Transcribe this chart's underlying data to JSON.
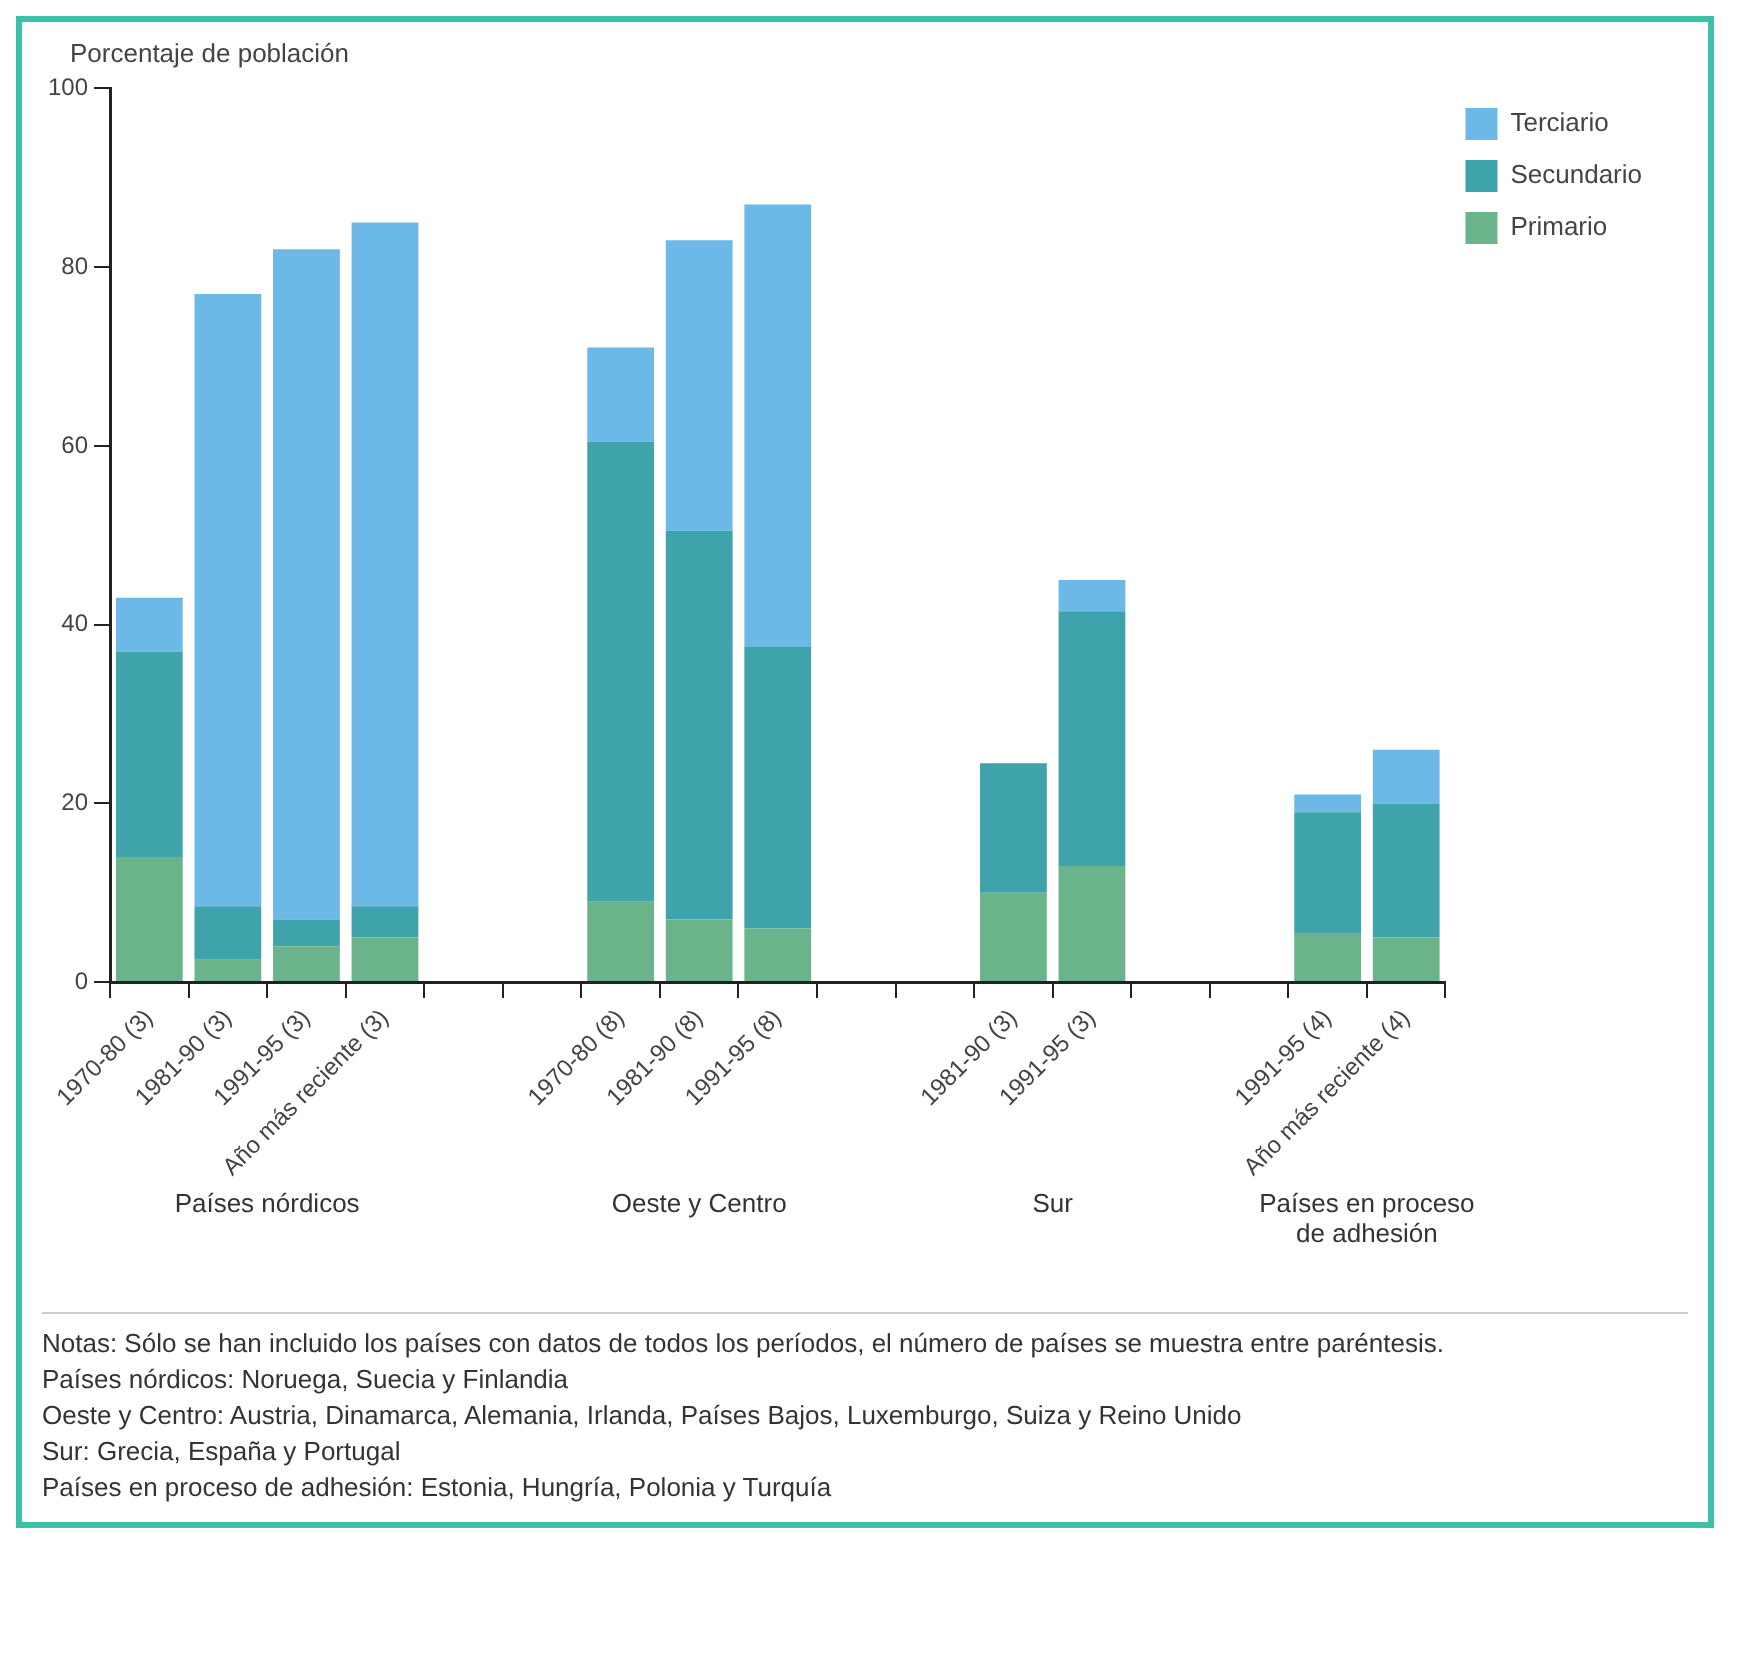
{
  "chart_data": {
    "type": "bar",
    "stacked": true,
    "ylabel": "Porcentaje de población",
    "categories": [
      "1970-80 (3)",
      "1981-90 (3)",
      "1991-95 (3)",
      "Año más reciente (3)",
      null,
      null,
      "1970-80 (8)",
      "1981-90 (8)",
      "1991-95 (8)",
      null,
      null,
      "1981-90 (3)",
      "1991-95 (3)",
      null,
      null,
      "1991-95 (4)",
      "Año más reciente (4)"
    ],
    "series": [
      {
        "name": "Primario",
        "color": "#6bb38a",
        "values": [
          14,
          2.5,
          4,
          5,
          null,
          null,
          9,
          7,
          6,
          null,
          null,
          10,
          13,
          null,
          null,
          5.5,
          5
        ]
      },
      {
        "name": "Secundario",
        "color": "#3ea3aa",
        "values": [
          23,
          6,
          3,
          3.5,
          null,
          null,
          51.5,
          43.5,
          31.5,
          null,
          null,
          14.5,
          28.5,
          null,
          null,
          13.5,
          15
        ]
      },
      {
        "name": "Terciario",
        "color": "#6cb8e6",
        "values": [
          6,
          68.5,
          75,
          76.5,
          null,
          null,
          10.5,
          32.5,
          49.5,
          null,
          null,
          0,
          3.5,
          null,
          null,
          2,
          6
        ]
      }
    ],
    "ylim": [
      0,
      100
    ],
    "yticks": [
      0,
      20,
      40,
      60,
      80,
      100
    ],
    "grid": false,
    "legend": "top right",
    "annotations": [
      "Países nórdicos",
      "Oeste y Centro",
      "Sur",
      "Países en proceso de adhesión",
      "Notas: Sólo se han incluido los países con datos de todos los períodos, el número de países se muestra entre paréntesis.",
      "Países nórdicos: Noruega, Suecia y Finlandia",
      "Oeste y Centro: Austria, Dinamarca, Alemania, Irlanda, Países Bajos, Luxemburgo, Suiza y Reino Unido",
      "Sur: Grecia, España y Portugal",
      "Países en proceso de adhesión: Estonia, Hungría, Polonia y Turquía"
    ]
  }
}
